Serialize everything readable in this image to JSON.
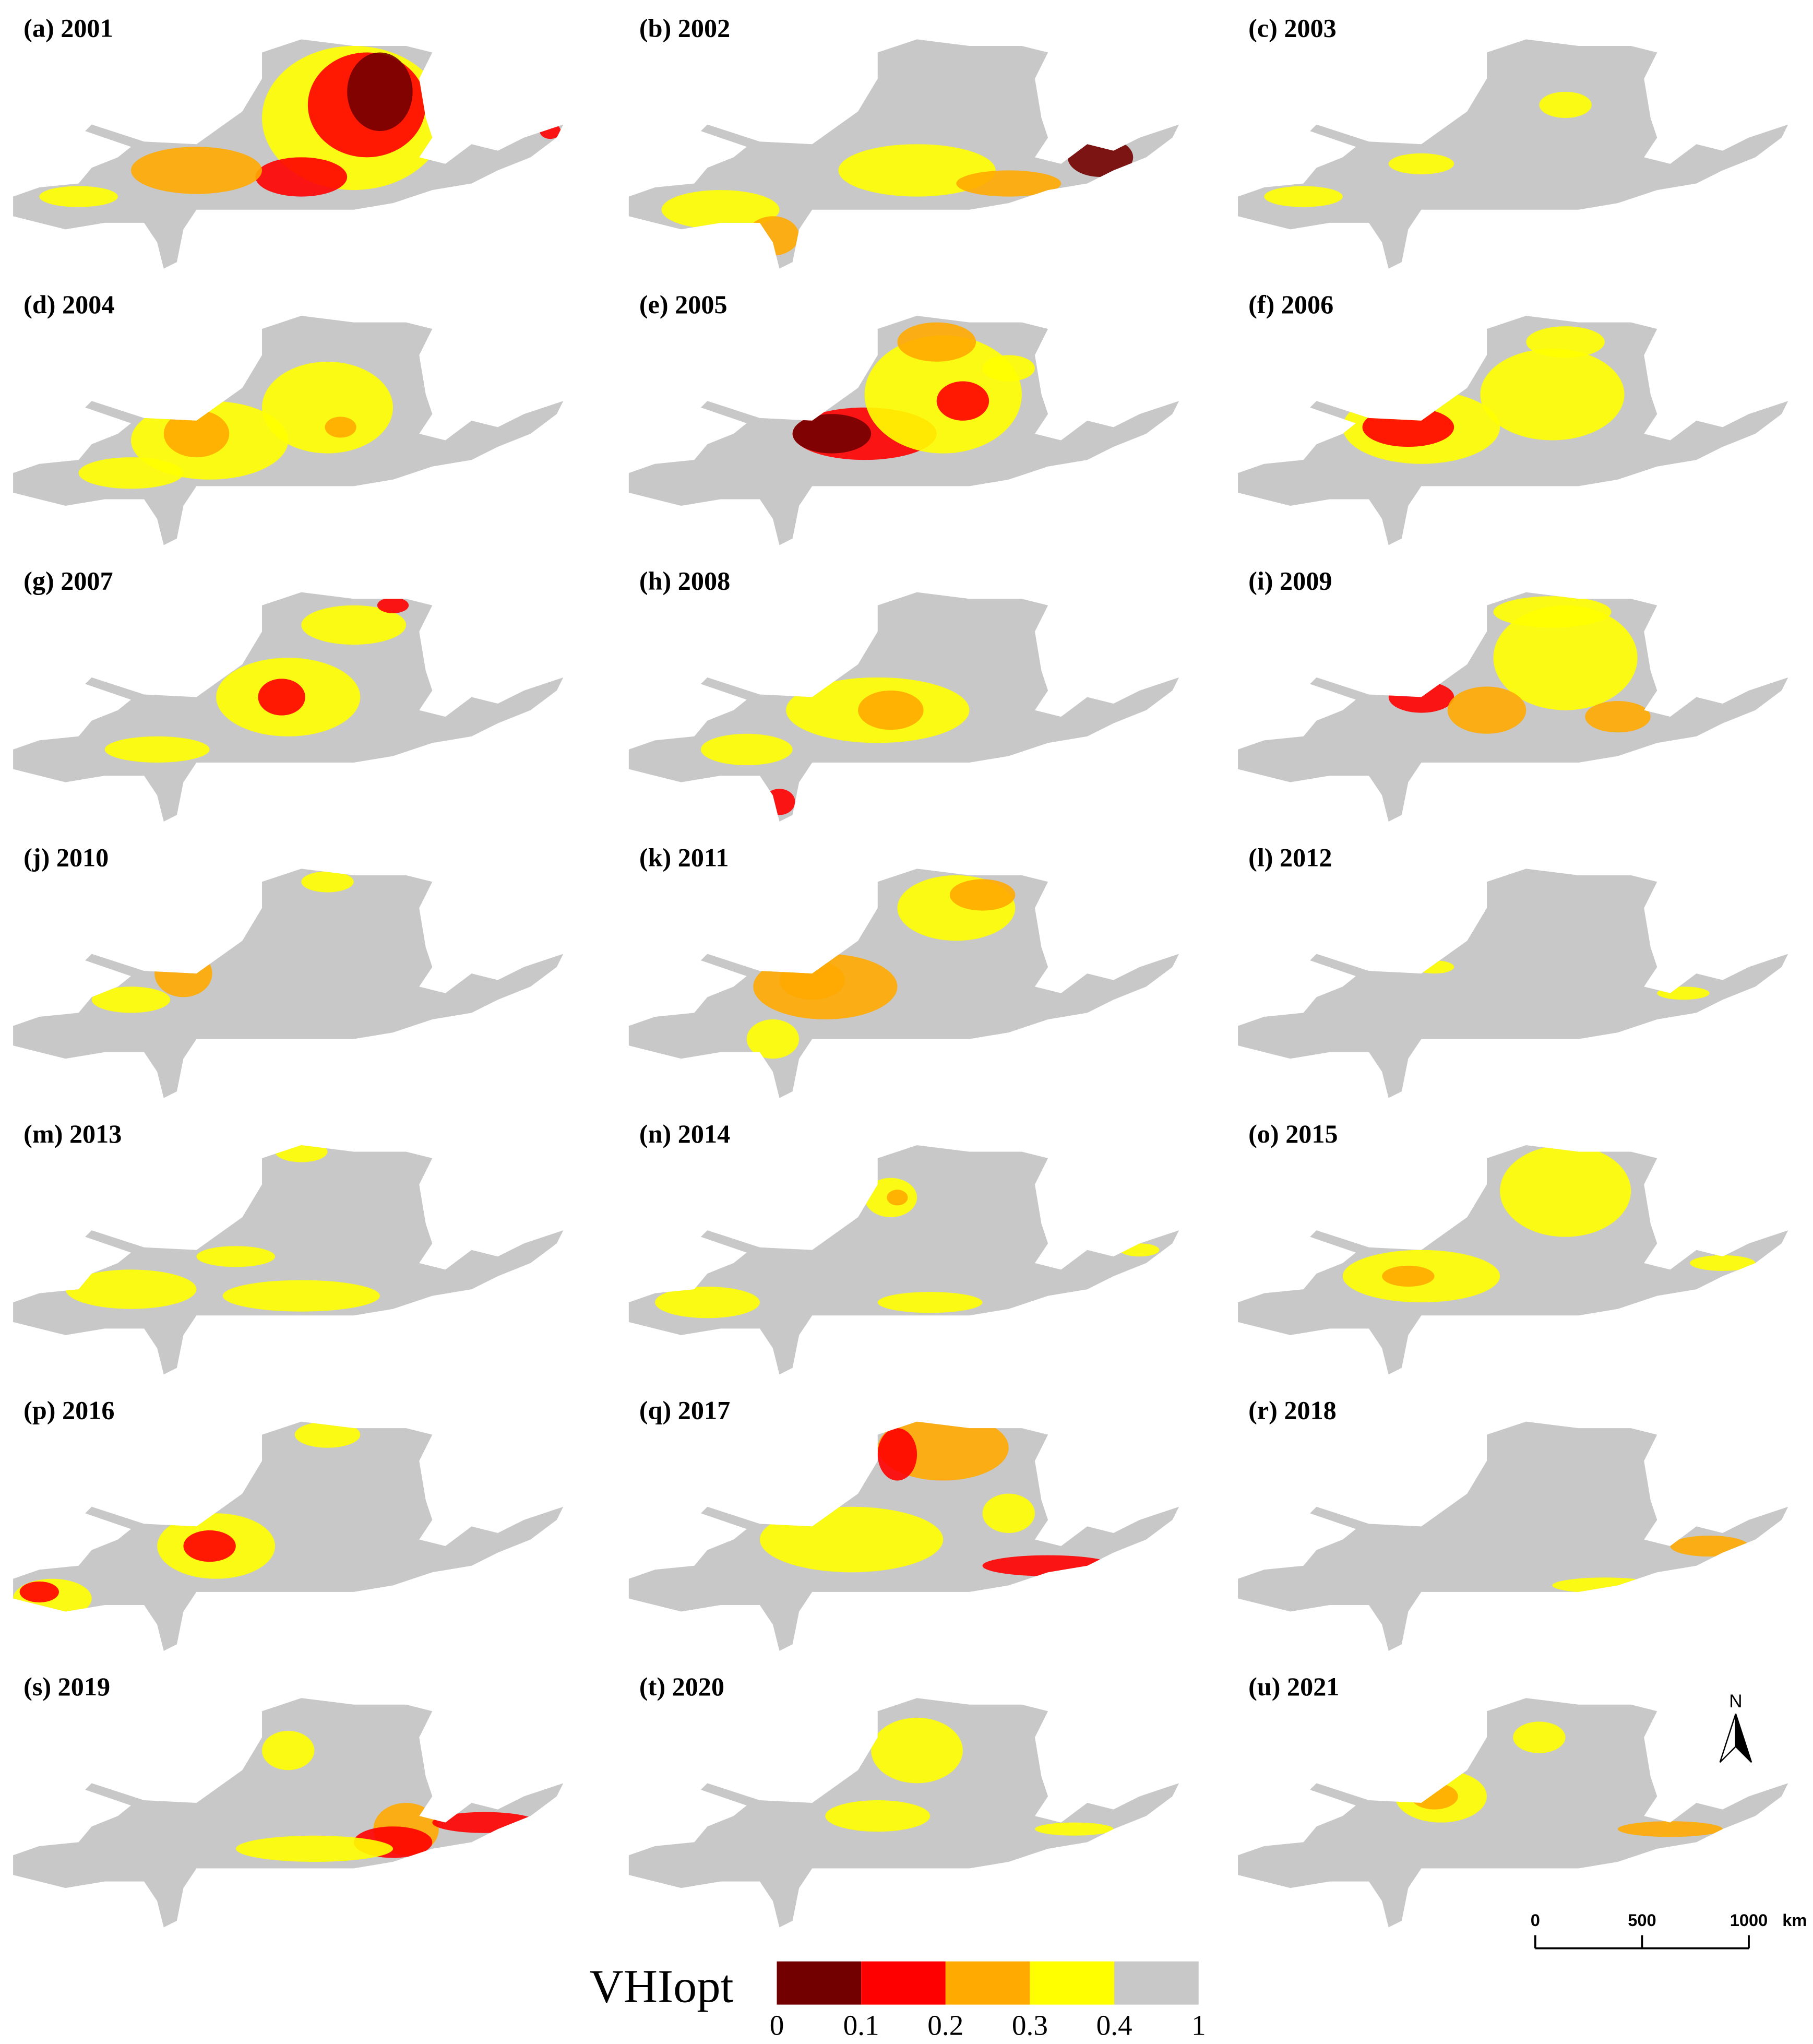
{
  "panels": [
    {
      "label": "(a) 2001"
    },
    {
      "label": "(b) 2002"
    },
    {
      "label": "(c) 2003"
    },
    {
      "label": "(d) 2004"
    },
    {
      "label": "(e) 2005"
    },
    {
      "label": "(f) 2006"
    },
    {
      "label": "(g) 2007"
    },
    {
      "label": "(h) 2008"
    },
    {
      "label": "(i) 2009"
    },
    {
      "label": "(j) 2010"
    },
    {
      "label": "(k) 2011"
    },
    {
      "label": "(l) 2012"
    },
    {
      "label": "(m) 2013"
    },
    {
      "label": "(n) 2014"
    },
    {
      "label": "(o) 2015"
    },
    {
      "label": "(p) 2016"
    },
    {
      "label": "(q) 2017"
    },
    {
      "label": "(r) 2018"
    },
    {
      "label": "(s) 2019"
    },
    {
      "label": "(t) 2020"
    },
    {
      "label": "(u) 2021"
    }
  ],
  "legend": {
    "title": "VHIopt",
    "ticks": [
      0,
      0.1,
      0.2,
      0.3,
      0.4,
      1
    ],
    "colors": [
      "#730000",
      "#ff0000",
      "#ffaa00",
      "#ffff00",
      "#c8c8c8"
    ]
  },
  "scale_bar": {
    "ticks": [
      0,
      500,
      1000
    ],
    "unit": "km"
  },
  "north_arrow": {
    "label": "N"
  }
}
